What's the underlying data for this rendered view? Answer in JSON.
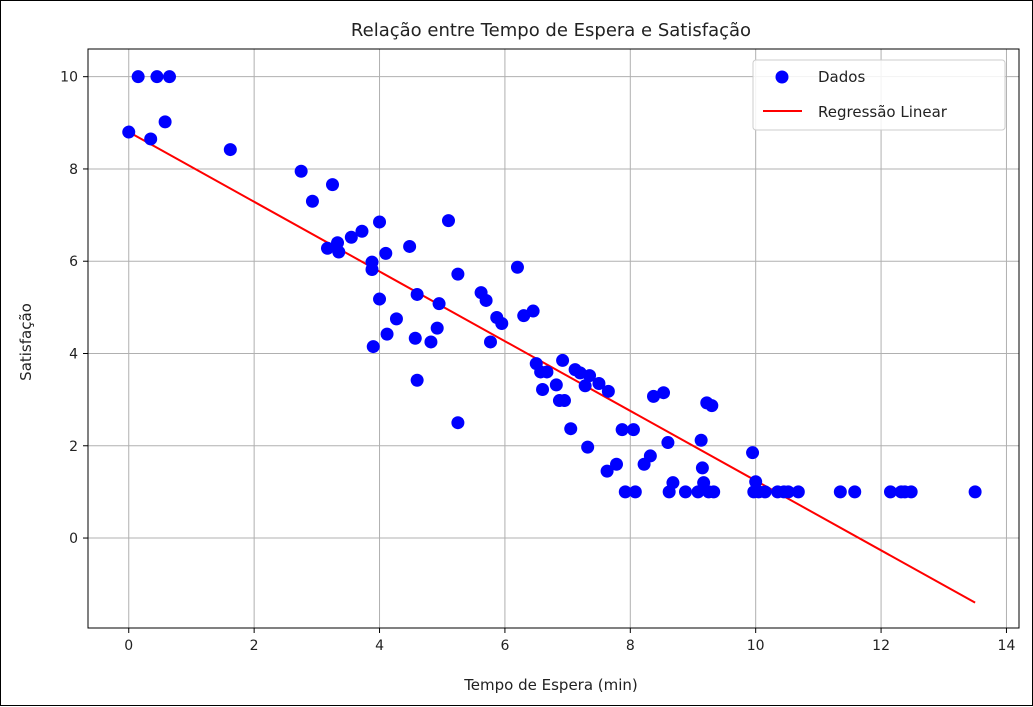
{
  "chart_data": {
    "type": "scatter",
    "title": "Relação entre Tempo de Espera e Satisfação",
    "xlabel": "Tempo de Espera (min)",
    "ylabel": "Satisfação",
    "xlim": [
      -0.65,
      14.2
    ],
    "ylim": [
      -1.95,
      10.6
    ],
    "xticks": [
      0,
      2,
      4,
      6,
      8,
      10,
      12,
      14
    ],
    "yticks": [
      0,
      2,
      4,
      6,
      8,
      10
    ],
    "grid": true,
    "legend_position": "top-right",
    "series": [
      {
        "name": "Dados",
        "kind": "scatter",
        "color": "#0000ff",
        "points": [
          [
            0.0,
            8.8
          ],
          [
            0.15,
            10.0
          ],
          [
            0.35,
            8.65
          ],
          [
            0.45,
            10.0
          ],
          [
            0.58,
            9.02
          ],
          [
            0.65,
            10.0
          ],
          [
            1.62,
            8.42
          ],
          [
            2.75,
            7.95
          ],
          [
            2.93,
            7.3
          ],
          [
            3.17,
            6.28
          ],
          [
            3.25,
            7.66
          ],
          [
            3.33,
            6.4
          ],
          [
            3.35,
            6.2
          ],
          [
            3.55,
            6.52
          ],
          [
            3.72,
            6.65
          ],
          [
            3.88,
            5.98
          ],
          [
            3.88,
            5.82
          ],
          [
            3.9,
            4.15
          ],
          [
            4.0,
            6.85
          ],
          [
            4.0,
            5.18
          ],
          [
            4.1,
            6.17
          ],
          [
            4.12,
            4.42
          ],
          [
            4.27,
            4.75
          ],
          [
            4.48,
            6.32
          ],
          [
            4.57,
            4.33
          ],
          [
            4.6,
            5.28
          ],
          [
            4.6,
            3.42
          ],
          [
            4.82,
            4.25
          ],
          [
            4.92,
            4.55
          ],
          [
            4.95,
            5.08
          ],
          [
            5.1,
            6.88
          ],
          [
            5.25,
            5.72
          ],
          [
            5.25,
            2.5
          ],
          [
            5.62,
            5.32
          ],
          [
            5.7,
            5.15
          ],
          [
            5.77,
            4.25
          ],
          [
            5.87,
            4.78
          ],
          [
            5.95,
            4.65
          ],
          [
            6.2,
            5.87
          ],
          [
            6.3,
            4.82
          ],
          [
            6.45,
            4.92
          ],
          [
            6.5,
            3.78
          ],
          [
            6.57,
            3.6
          ],
          [
            6.6,
            3.22
          ],
          [
            6.67,
            3.6
          ],
          [
            6.82,
            3.32
          ],
          [
            6.87,
            2.98
          ],
          [
            6.92,
            3.85
          ],
          [
            6.95,
            2.98
          ],
          [
            7.05,
            2.37
          ],
          [
            7.12,
            3.65
          ],
          [
            7.2,
            3.58
          ],
          [
            7.28,
            3.3
          ],
          [
            7.32,
            1.97
          ],
          [
            7.35,
            3.52
          ],
          [
            7.5,
            3.35
          ],
          [
            7.63,
            1.45
          ],
          [
            7.65,
            3.18
          ],
          [
            7.78,
            1.6
          ],
          [
            7.87,
            2.35
          ],
          [
            7.92,
            1.0
          ],
          [
            8.05,
            2.35
          ],
          [
            8.08,
            1.0
          ],
          [
            8.22,
            1.6
          ],
          [
            8.32,
            1.78
          ],
          [
            8.37,
            3.07
          ],
          [
            8.53,
            3.15
          ],
          [
            8.6,
            2.07
          ],
          [
            8.62,
            1.0
          ],
          [
            8.68,
            1.2
          ],
          [
            8.88,
            1.0
          ],
          [
            9.08,
            1.0
          ],
          [
            9.13,
            2.12
          ],
          [
            9.15,
            1.52
          ],
          [
            9.17,
            1.2
          ],
          [
            9.22,
            2.93
          ],
          [
            9.25,
            1.0
          ],
          [
            9.3,
            2.87
          ],
          [
            9.33,
            1.0
          ],
          [
            9.95,
            1.85
          ],
          [
            9.97,
            1.0
          ],
          [
            10.0,
            1.22
          ],
          [
            10.05,
            1.0
          ],
          [
            10.15,
            1.0
          ],
          [
            10.35,
            1.0
          ],
          [
            10.45,
            1.0
          ],
          [
            10.52,
            1.0
          ],
          [
            10.68,
            1.0
          ],
          [
            11.35,
            1.0
          ],
          [
            11.58,
            1.0
          ],
          [
            12.15,
            1.0
          ],
          [
            12.32,
            1.0
          ],
          [
            12.38,
            1.0
          ],
          [
            12.48,
            1.0
          ],
          [
            13.5,
            1.0
          ]
        ]
      },
      {
        "name": "Regressão Linear",
        "kind": "line",
        "color": "#ff0000",
        "points": [
          [
            0.0,
            8.8
          ],
          [
            13.5,
            -1.4
          ]
        ]
      }
    ]
  }
}
